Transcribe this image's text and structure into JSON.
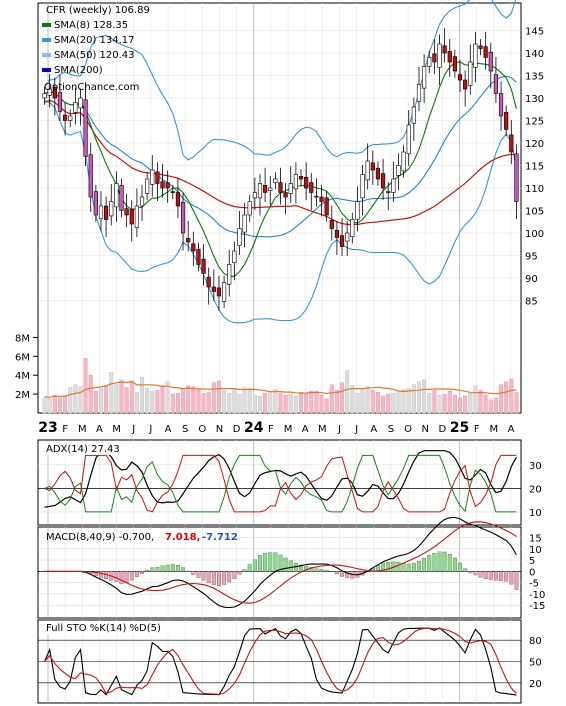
{
  "chart_data": [
    {
      "type": "candlestick",
      "panel": "price",
      "legend": [
        {
          "label": "CFR (weekly) 106.89",
          "color": "#000000"
        },
        {
          "label": "SMA(8) 128.35",
          "color": "#008000"
        },
        {
          "label": "SMA(20) 134.17",
          "color": "#3399dd"
        },
        {
          "label": "SMA(50) 120.43",
          "color": "#88bbee"
        },
        {
          "label": "SMA(200)",
          "color": "#0000cc"
        }
      ],
      "watermark": "OptionChance.com",
      "ylim": [
        80,
        150
      ],
      "y_ticks": [
        85,
        90,
        95,
        100,
        105,
        110,
        115,
        120,
        125,
        130,
        135,
        140,
        145
      ],
      "x_ticks": [
        "23",
        "F",
        "M",
        "A",
        "M",
        "J",
        "J",
        "A",
        "S",
        "O",
        "N",
        "D",
        "24",
        "F",
        "M",
        "A",
        "M",
        "J",
        "J",
        "A",
        "S",
        "O",
        "N",
        "D",
        "25",
        "F",
        "M",
        "A"
      ],
      "close_approx": [
        131,
        132,
        130,
        127,
        125,
        126,
        129,
        130,
        117,
        108,
        104,
        106,
        103,
        107,
        111,
        105,
        104,
        102,
        106,
        108,
        112,
        114,
        111,
        110,
        110,
        109,
        106,
        100,
        98,
        96,
        93,
        91,
        88,
        87,
        86,
        89,
        93,
        96,
        101,
        104,
        107,
        109,
        111,
        109,
        110,
        112,
        109,
        108,
        111,
        113,
        112,
        110,
        109,
        108,
        107,
        104,
        101,
        99,
        97,
        100,
        103,
        107,
        113,
        116,
        114,
        112,
        110,
        109,
        112,
        115,
        118,
        124,
        128,
        133,
        137,
        139,
        138,
        142,
        140,
        138,
        136,
        134,
        132,
        138,
        142,
        141,
        139,
        136,
        131,
        126,
        123,
        118,
        107
      ]
    },
    {
      "type": "bar",
      "panel": "volume",
      "y_ticks": [
        "2M",
        "4M",
        "6M",
        "8M"
      ],
      "ylim": [
        0,
        9
      ],
      "values_millions_approx": [
        1.6,
        1.5,
        1.9,
        1.6,
        1.8,
        2.7,
        3.0,
        2.8,
        5.8,
        4.0,
        2.3,
        2.6,
        2.9,
        4.3,
        3.0,
        3.5,
        2.7,
        3.4,
        2.2,
        3.8,
        2.6,
        2.3,
        2.4,
        2.9,
        3.3,
        2.0,
        2.1,
        2.6,
        2.9,
        2.8,
        2.5,
        2.1,
        2.2,
        3.2,
        3.4,
        2.4,
        2.1,
        2.5,
        2.0,
        2.7,
        2.6,
        1.9,
        1.8,
        2.1,
        2.2,
        2.5,
        2.1,
        1.9,
        2.0,
        1.8,
        2.2,
        2.1,
        2.3,
        2.3,
        1.9,
        1.5,
        3.0,
        2.4,
        3.2,
        4.5,
        2.9,
        2.1,
        2.5,
        2.8,
        2.4,
        2.2,
        1.8,
        2.0,
        2.1,
        2.3,
        2.5,
        2.6,
        3.0,
        3.3,
        3.5,
        2.1,
        2.4,
        1.9,
        2.0,
        2.3,
        1.9,
        1.6,
        1.8,
        2.1,
        2.9,
        2.4,
        1.9,
        1.4,
        1.6,
        3.0,
        3.3,
        3.6,
        2.2
      ],
      "sma_line_millions_approx": 2.4
    },
    {
      "type": "line",
      "panel": "adx",
      "legend": "ADX(14) 27.43",
      "y_ticks": [
        10,
        20,
        30
      ],
      "ylim": [
        7,
        38
      ]
    },
    {
      "type": "area",
      "panel": "macd",
      "legend": "MACD(8,40,9) -0.700,",
      "legend_values": [
        {
          "text": "7.018,",
          "color": "#dd0000"
        },
        {
          "text": "-7.712",
          "color": "#2255bb"
        }
      ],
      "y_ticks": [
        15,
        10,
        5,
        0,
        -5,
        -10,
        -15
      ],
      "ylim": [
        -18,
        17
      ]
    },
    {
      "type": "line",
      "panel": "stochastic",
      "legend": "Full STO %K(14) %D(5)",
      "y_ticks": [
        20,
        50,
        80
      ],
      "ylim": [
        0,
        100
      ]
    }
  ]
}
